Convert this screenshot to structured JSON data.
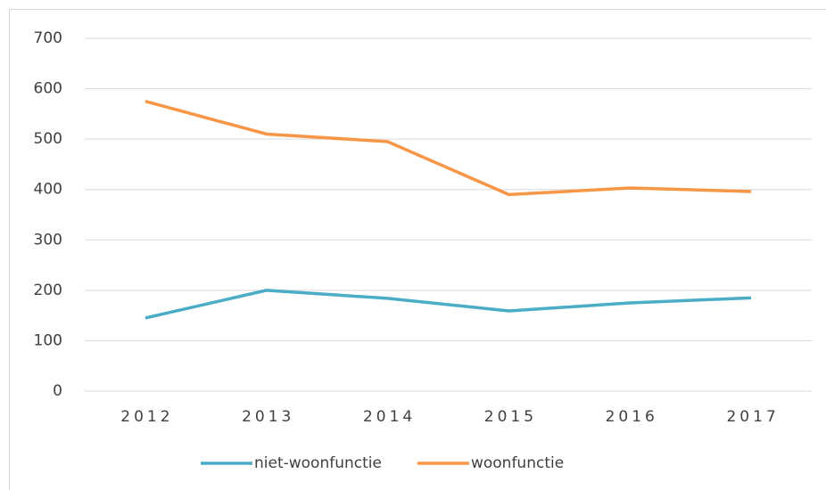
{
  "chart_data": {
    "type": "line",
    "categories": [
      "2012",
      "2013",
      "2014",
      "2015",
      "2016",
      "2017"
    ],
    "series": [
      {
        "name": "niet-woonfunctie",
        "color": "#4bacc6",
        "values": [
          145,
          200,
          184,
          159,
          175,
          185
        ]
      },
      {
        "name": "woonfunctie",
        "color": "#f79646",
        "values": [
          575,
          510,
          495,
          390,
          403,
          396
        ]
      }
    ],
    "ylim": [
      0,
      700
    ],
    "yticks": [
      0,
      100,
      200,
      300,
      400,
      500,
      600,
      700
    ],
    "grid": true,
    "legend": "bottom"
  }
}
